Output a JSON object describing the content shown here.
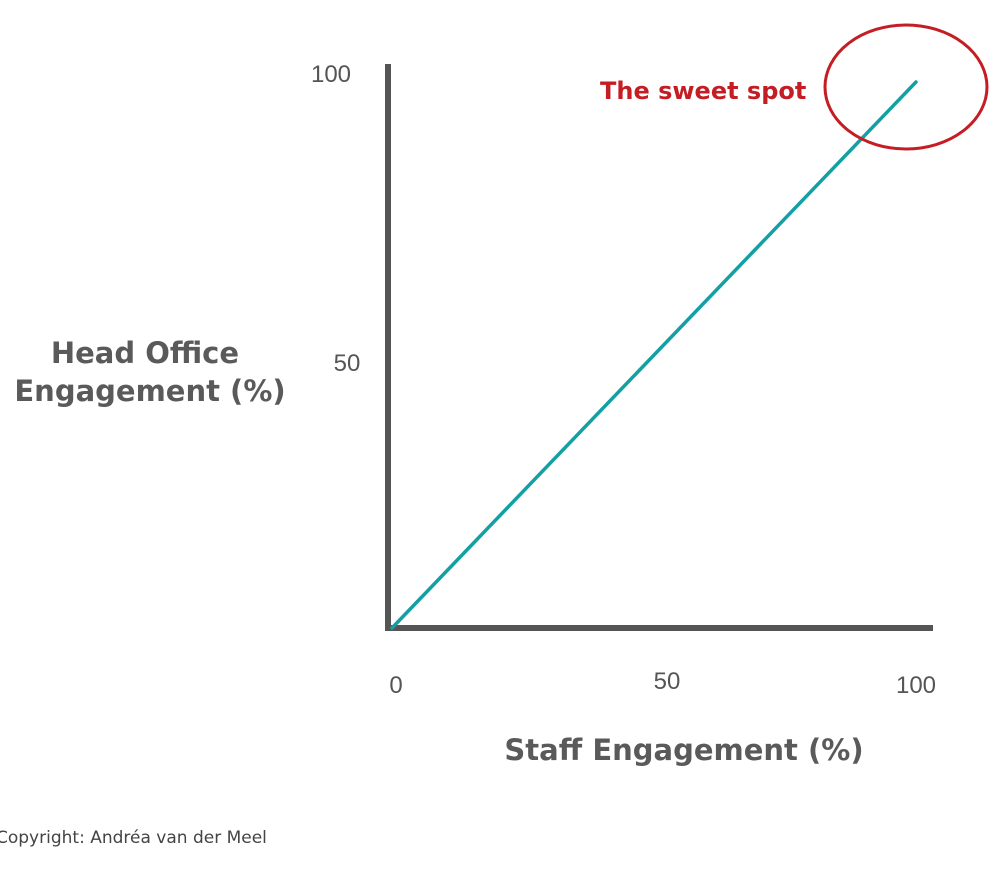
{
  "chart_data": {
    "type": "line",
    "xlabel": "Staff Engagement (%)",
    "ylabel_lines": [
      "Head Office",
      "Engagement (%)"
    ],
    "xlim": [
      0,
      100
    ],
    "ylim": [
      0,
      100
    ],
    "x_ticks": [
      {
        "value": 0,
        "label": "0"
      },
      {
        "value": 50,
        "label": "50"
      },
      {
        "value": 100,
        "label": "100"
      }
    ],
    "y_ticks": [
      {
        "value": 50,
        "label": "50"
      },
      {
        "value": 100,
        "label": "100"
      }
    ],
    "grid": false,
    "series": [
      {
        "x": [
          0,
          100
        ],
        "y": [
          0,
          100
        ],
        "color": "#13a0a4"
      }
    ],
    "annotation": {
      "text": "The sweet spot",
      "color": "#c41e24",
      "circle_center": {
        "x": 100,
        "y": 100
      }
    },
    "axis_color": "#555555"
  },
  "footer": {
    "copyright": "Copyright: Andréa van der Meel"
  }
}
